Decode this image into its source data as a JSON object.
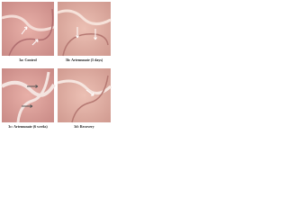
{
  "panels": [
    {
      "caption": "3a: Control"
    },
    {
      "caption": "3b: Artemunate (5 days)"
    },
    {
      "caption": "3c: Artemunate (6 weeks)"
    },
    {
      "caption": "3d: Recovery"
    }
  ]
}
